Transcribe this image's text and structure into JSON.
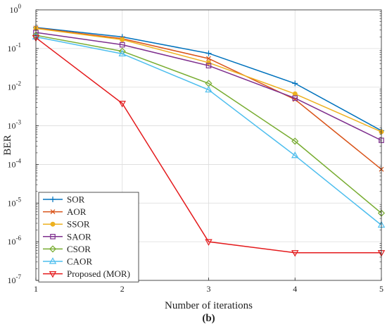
{
  "chart_data": {
    "type": "line",
    "xlabel": "Number of iterations",
    "ylabel": "BER",
    "subfigure_label": "(b)",
    "y_scale": "log",
    "xlim": [
      1,
      5
    ],
    "ylim": [
      1e-07,
      1
    ],
    "grid": true,
    "legend_position": "bottom-left",
    "x_ticks": [
      "1",
      "2",
      "3",
      "4",
      "5"
    ],
    "y_ticks": [
      {
        "base": "10",
        "exp": "0"
      },
      {
        "base": "10",
        "exp": "-1"
      },
      {
        "base": "10",
        "exp": "-2"
      },
      {
        "base": "10",
        "exp": "-3"
      },
      {
        "base": "10",
        "exp": "-4"
      },
      {
        "base": "10",
        "exp": "-5"
      },
      {
        "base": "10",
        "exp": "-6"
      },
      {
        "base": "10",
        "exp": "-7"
      }
    ],
    "x": [
      1,
      2,
      3,
      4,
      5
    ],
    "series": [
      {
        "name": "SOR",
        "color": "#0072BD",
        "marker": "plus",
        "values": [
          0.35,
          0.2,
          0.075,
          0.0125,
          0.00075
        ]
      },
      {
        "name": "AOR",
        "color": "#D95319",
        "marker": "x",
        "values": [
          0.34,
          0.18,
          0.055,
          0.0048,
          7.5e-05
        ]
      },
      {
        "name": "SSOR",
        "color": "#EDB120",
        "marker": "dot",
        "values": [
          0.33,
          0.17,
          0.043,
          0.0067,
          0.0007
        ]
      },
      {
        "name": "SAOR",
        "color": "#7E2F8E",
        "marker": "square",
        "values": [
          0.26,
          0.125,
          0.036,
          0.0052,
          0.00042
        ]
      },
      {
        "name": "CSOR",
        "color": "#77AC30",
        "marker": "diamond",
        "values": [
          0.22,
          0.085,
          0.0125,
          0.0004,
          5.5e-06
        ]
      },
      {
        "name": "CAOR",
        "color": "#4DBEEE",
        "marker": "triangle-up",
        "values": [
          0.2,
          0.073,
          0.0085,
          0.00017,
          2.7e-06
        ]
      },
      {
        "name": "Proposed (MOR)",
        "color": "#E41A1C",
        "marker": "triangle-down",
        "values": [
          0.19,
          0.0038,
          1e-06,
          5.2e-07,
          5.2e-07
        ]
      }
    ]
  }
}
